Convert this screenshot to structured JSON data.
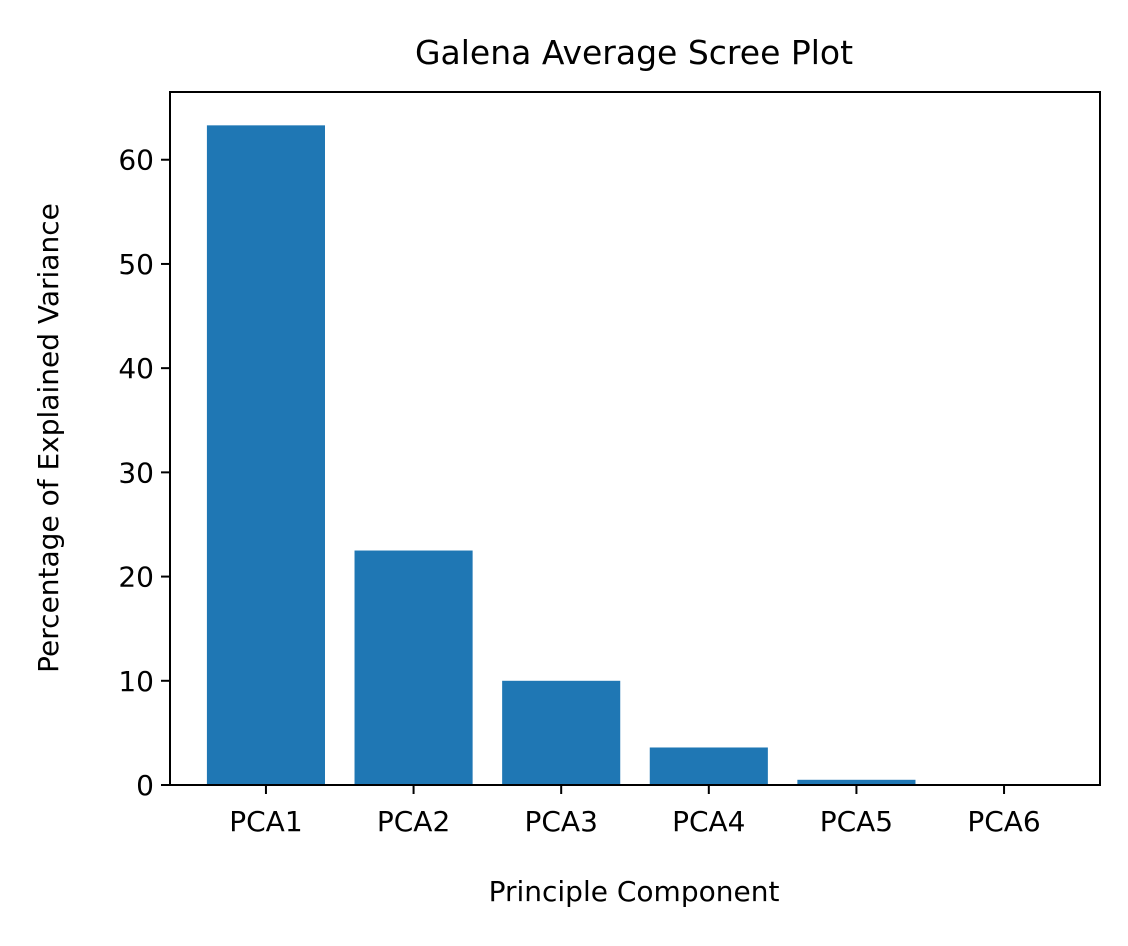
{
  "chart_data": {
    "type": "bar",
    "title": "Galena Average Scree Plot",
    "xlabel": "Principle Component",
    "ylabel": "Percentage of Explained Variance",
    "categories": [
      "PCA1",
      "PCA2",
      "PCA3",
      "PCA4",
      "PCA5",
      "PCA6"
    ],
    "values": [
      63.3,
      22.5,
      10.0,
      3.6,
      0.5,
      0.05
    ],
    "ylim": [
      0,
      66.5
    ],
    "yticks": [
      0,
      10,
      20,
      30,
      40,
      50,
      60
    ],
    "grid": false,
    "legend": "none",
    "bar_color": "#1f77b4"
  }
}
